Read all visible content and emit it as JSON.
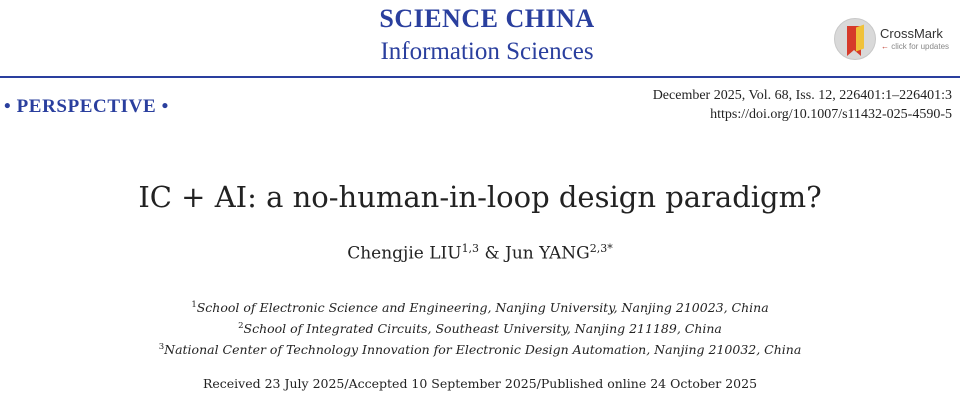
{
  "header": {
    "journal_title": "SCIENCE CHINA",
    "journal_subtitle": "Information Sciences",
    "crossmark": {
      "label": "CrossMark",
      "sub": "click for updates",
      "icon": "crossmark-icon",
      "colors": {
        "red": "#d63a2a",
        "yellow": "#f0c23a",
        "grey": "#d9d9d9"
      }
    },
    "accent_color": "#2a3f9e"
  },
  "meta": {
    "section": "• PERSPECTIVE •",
    "issue": "December 2025, Vol. 68, Iss. 12, 226401:1–226401:3",
    "doi": "https://doi.org/10.1007/s11432-025-4590-5"
  },
  "article": {
    "title": "IC + AI: a no-human-in-loop design paradigm?",
    "authors": [
      {
        "name": "Chengjie LIU",
        "sup": "1,3"
      },
      {
        "name": "Jun YANG",
        "sup": "2,3*"
      }
    ],
    "author_separator": " & ",
    "affiliations": [
      {
        "num": "1",
        "text": "School of Electronic Science and Engineering, Nanjing University, Nanjing 210023, China"
      },
      {
        "num": "2",
        "text": "School of Integrated Circuits, Southeast University, Nanjing 211189, China"
      },
      {
        "num": "3",
        "text": "National Center of Technology Innovation for Electronic Design Automation, Nanjing 210032, China"
      }
    ],
    "dates": "Received 23 July 2025/Accepted 10 September 2025/Published online 24 October 2025"
  }
}
